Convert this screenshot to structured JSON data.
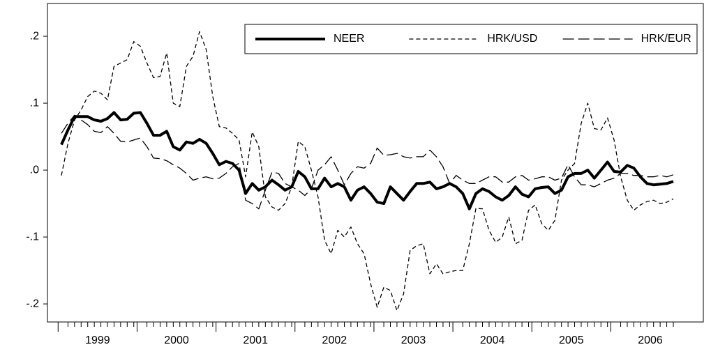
{
  "chart_data": {
    "type": "line",
    "categories": [
      null,
      null,
      null,
      null,
      null,
      null,
      "1999",
      null,
      null,
      null,
      null,
      null,
      null,
      null,
      null,
      null,
      null,
      null,
      "2000",
      null,
      null,
      null,
      null,
      null,
      null,
      null,
      null,
      null,
      null,
      null,
      "2001",
      null,
      null,
      null,
      null,
      null,
      null,
      null,
      null,
      null,
      null,
      null,
      "2002",
      null,
      null,
      null,
      null,
      null,
      null,
      null,
      null,
      null,
      null,
      null,
      "2003",
      null,
      null,
      null,
      null,
      null,
      null,
      null,
      null,
      null,
      null,
      null,
      "2004",
      null,
      null,
      null,
      null,
      null,
      null,
      null,
      null,
      null,
      null,
      null,
      "2005",
      null,
      null,
      null,
      null,
      null,
      null,
      null,
      null,
      null,
      null,
      null,
      "2006",
      null,
      null,
      null
    ],
    "ylim": [
      -0.227,
      0.249
    ],
    "yticks": [
      {
        "value": 0.2,
        "label": ".2"
      },
      {
        "value": 0.1,
        "label": ".1"
      },
      {
        "value": 0,
        "label": ".0"
      },
      {
        "value": -0.1,
        "label": "-.1"
      },
      {
        "value": -0.2,
        "label": "-.2"
      }
    ],
    "legend": "top-right",
    "series": [
      {
        "name": "NEER",
        "color": "#000000",
        "width": 4,
        "dash": "solid",
        "values": [
          0.038,
          0.06,
          0.08,
          0.08,
          0.08,
          0.075,
          0.073,
          0.077,
          0.086,
          0.075,
          0.076,
          0.085,
          0.086,
          0.07,
          0.052,
          0.052,
          0.058,
          0.035,
          0.03,
          0.042,
          0.04,
          0.046,
          0.04,
          0.025,
          0.008,
          0.013,
          0.01,
          0.0,
          -0.035,
          -0.02,
          -0.03,
          -0.025,
          -0.015,
          -0.022,
          -0.03,
          -0.025,
          -0.002,
          -0.01,
          -0.028,
          -0.028,
          -0.012,
          -0.025,
          -0.02,
          -0.025,
          -0.045,
          -0.03,
          -0.025,
          -0.035,
          -0.048,
          -0.05,
          -0.025,
          -0.035,
          -0.045,
          -0.032,
          -0.02,
          -0.02,
          -0.018,
          -0.028,
          -0.025,
          -0.02,
          -0.025,
          -0.035,
          -0.058,
          -0.035,
          -0.028,
          -0.032,
          -0.04,
          -0.045,
          -0.038,
          -0.025,
          -0.036,
          -0.04,
          -0.028,
          -0.026,
          -0.025,
          -0.035,
          -0.03,
          -0.01,
          -0.005,
          -0.005,
          0.0,
          -0.012,
          0.0,
          0.012,
          -0.002,
          -0.003,
          0.007,
          0.003,
          -0.01,
          -0.02,
          -0.022,
          -0.021,
          -0.02,
          -0.017
        ]
      },
      {
        "name": "HRK/USD",
        "color": "#000000",
        "width": 1.3,
        "dash": "short",
        "values": [
          -0.008,
          0.04,
          0.075,
          0.09,
          0.11,
          0.118,
          0.115,
          0.105,
          0.155,
          0.16,
          0.165,
          0.192,
          0.185,
          0.16,
          0.138,
          0.14,
          0.175,
          0.1,
          0.095,
          0.155,
          0.17,
          0.207,
          0.18,
          0.11,
          0.065,
          0.063,
          0.055,
          0.045,
          -0.01,
          0.057,
          0.035,
          -0.04,
          -0.055,
          -0.06,
          -0.05,
          -0.025,
          0.043,
          0.035,
          0.0,
          -0.04,
          -0.105,
          -0.125,
          -0.09,
          -0.1,
          -0.085,
          -0.11,
          -0.125,
          -0.17,
          -0.205,
          -0.175,
          -0.18,
          -0.21,
          -0.185,
          -0.12,
          -0.113,
          -0.11,
          -0.155,
          -0.14,
          -0.155,
          -0.152,
          -0.15,
          -0.15,
          -0.11,
          -0.057,
          -0.058,
          -0.09,
          -0.108,
          -0.1,
          -0.07,
          -0.11,
          -0.105,
          -0.06,
          -0.052,
          -0.08,
          -0.09,
          -0.075,
          -0.015,
          0.0,
          0.01,
          0.07,
          0.1,
          0.062,
          0.06,
          0.078,
          0.045,
          -0.01,
          -0.045,
          -0.06,
          -0.052,
          -0.047,
          -0.045,
          -0.05,
          -0.048,
          -0.043
        ]
      },
      {
        "name": "HRK/EUR",
        "color": "#000000",
        "width": 1.3,
        "dash": "long",
        "values": [
          0.055,
          0.07,
          0.082,
          0.075,
          0.068,
          0.058,
          0.056,
          0.065,
          0.055,
          0.043,
          0.042,
          0.045,
          0.048,
          0.035,
          0.018,
          0.017,
          0.014,
          0.008,
          0.003,
          -0.005,
          -0.015,
          -0.012,
          -0.01,
          -0.013,
          -0.012,
          -0.005,
          0.005,
          0.01,
          -0.045,
          -0.05,
          -0.058,
          -0.03,
          -0.003,
          -0.005,
          -0.02,
          -0.025,
          -0.03,
          -0.038,
          -0.028,
          0.0,
          0.008,
          0.02,
          0.0,
          -0.022,
          -0.005,
          0.005,
          0.003,
          0.01,
          0.033,
          0.022,
          0.023,
          0.025,
          0.02,
          0.018,
          0.02,
          0.02,
          0.03,
          0.02,
          0.005,
          -0.02,
          -0.008,
          -0.015,
          -0.02,
          -0.02,
          -0.015,
          -0.01,
          -0.01,
          -0.018,
          -0.018,
          -0.01,
          -0.008,
          -0.015,
          -0.013,
          -0.01,
          -0.01,
          -0.015,
          -0.012,
          0.008,
          -0.01,
          -0.022,
          -0.022,
          -0.025,
          -0.02,
          -0.015,
          -0.012,
          -0.005,
          -0.005,
          -0.008,
          -0.008,
          -0.01,
          -0.01,
          -0.008,
          -0.01,
          -0.007
        ]
      }
    ]
  }
}
